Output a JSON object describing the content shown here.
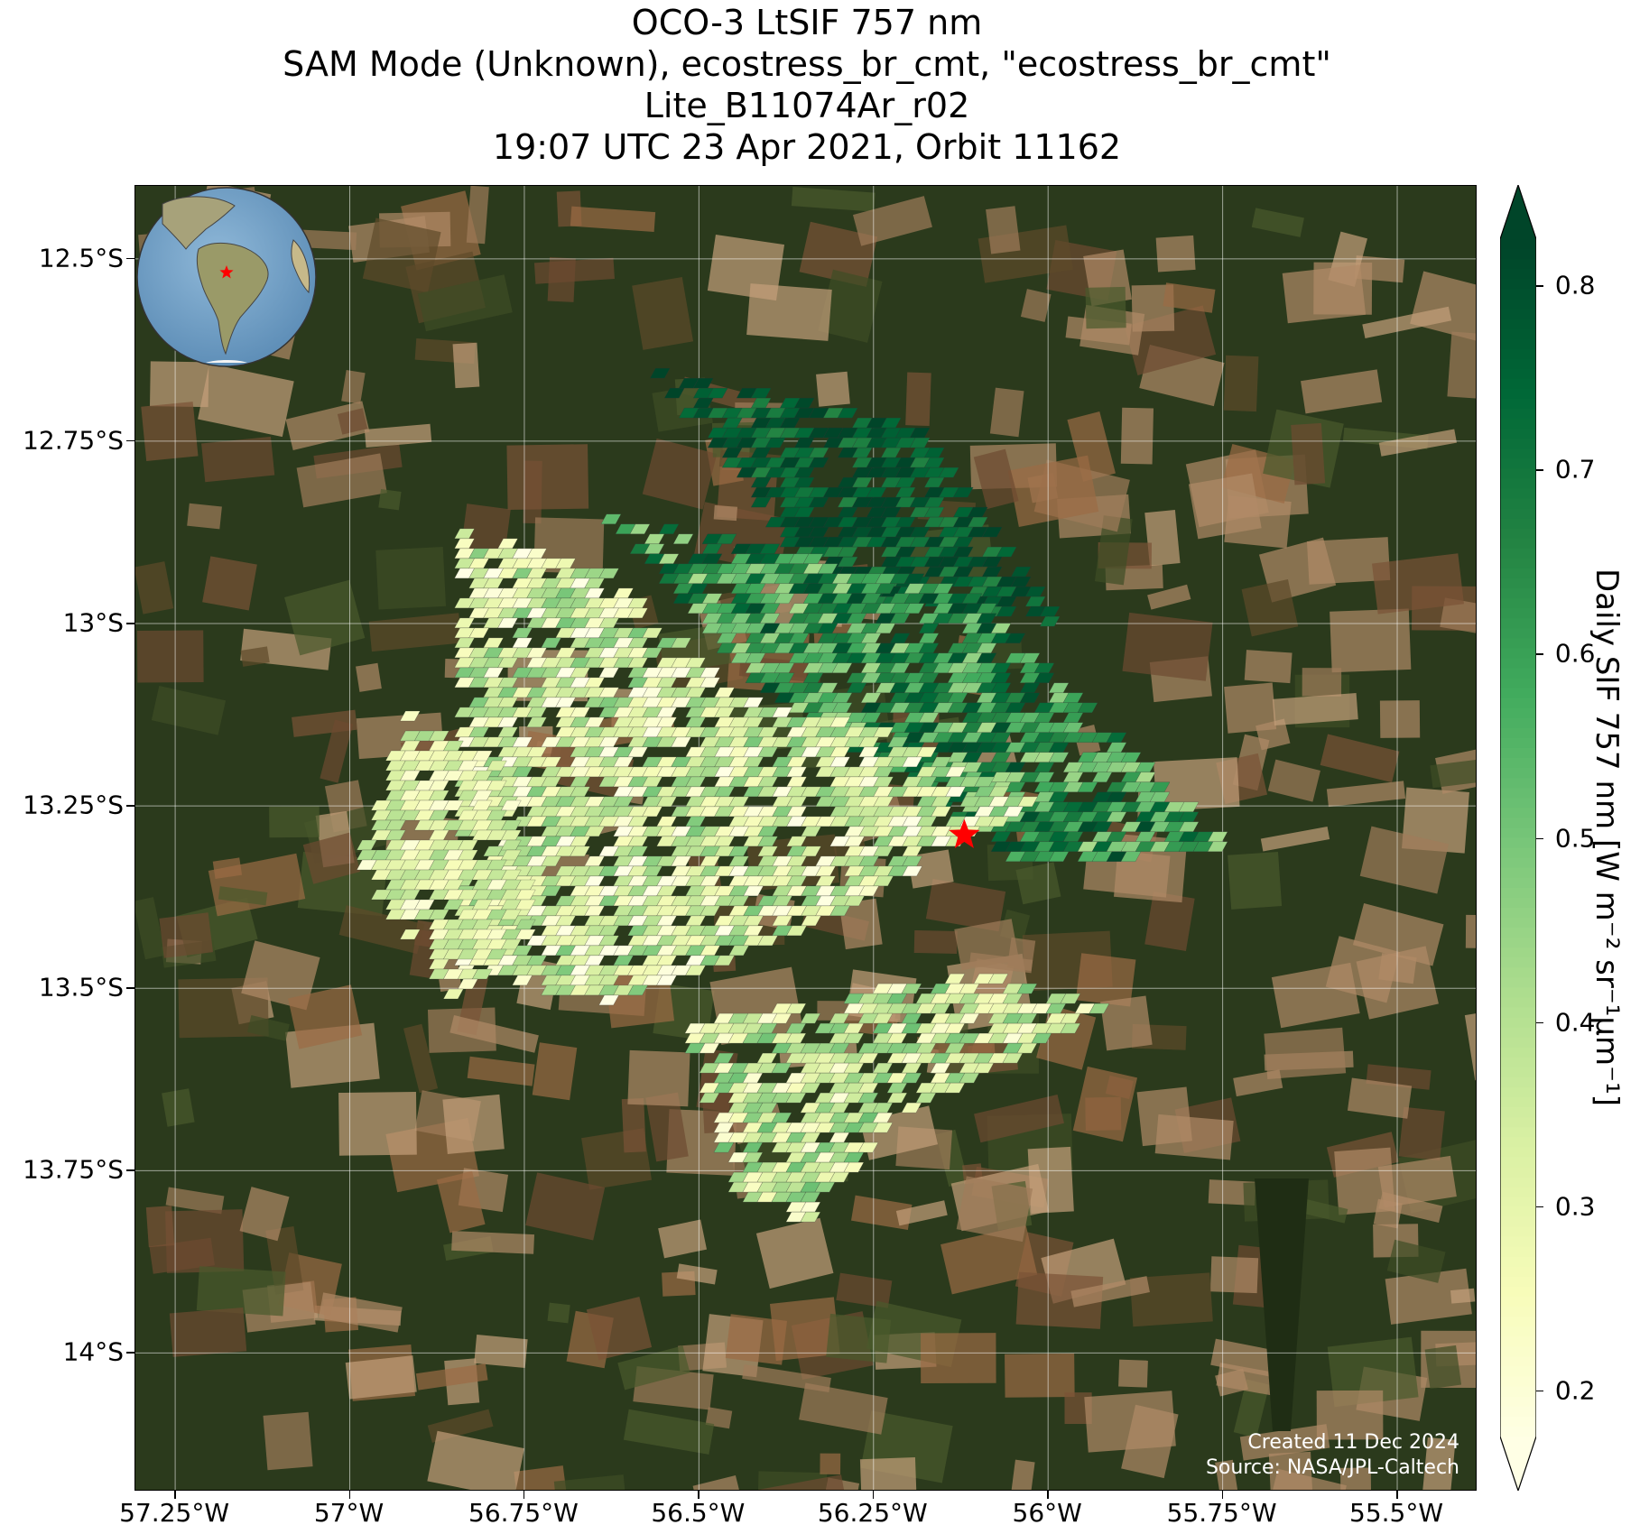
{
  "title": {
    "line1": "OCO-3 LtSIF 757 nm",
    "line2": "SAM Mode (Unknown), ecostress_br_cmt, \"ecostress_br_cmt\"",
    "line3": "Lite_B11074Ar_r02",
    "line4": "19:07 UTC 23 Apr 2021, Orbit 11162"
  },
  "map": {
    "lat_ticks": [
      "12.5°S",
      "12.75°S",
      "13°S",
      "13.25°S",
      "13.5°S",
      "13.75°S",
      "14°S"
    ],
    "lon_ticks": [
      "57.25°W",
      "57°W",
      "56.75°W",
      "56.5°W",
      "56.25°W",
      "56°W",
      "55.75°W",
      "55.5°W"
    ],
    "target_marker": {
      "lon": -56.12,
      "lat": -13.29,
      "color": "#ff0000"
    },
    "credit_line1": "Created 11 Dec 2024",
    "credit_line2": "Source: NASA/JPL-Caltech"
  },
  "colorbar": {
    "label": "Daily SIF 757 nm [W m⁻² sr⁻¹μm⁻¹]",
    "ticks": [
      "0.8",
      "0.7",
      "0.6",
      "0.5",
      "0.4",
      "0.3",
      "0.2"
    ],
    "vmin": 0.175,
    "vmax": 0.825,
    "colormap": "YlGn",
    "extend": "both"
  },
  "inset_globe": {
    "marker_color": "#ff0000"
  },
  "colors": {
    "background_dark": "#26351a",
    "field_brown": "#8a5a3a",
    "field_tan": "#b89470"
  }
}
